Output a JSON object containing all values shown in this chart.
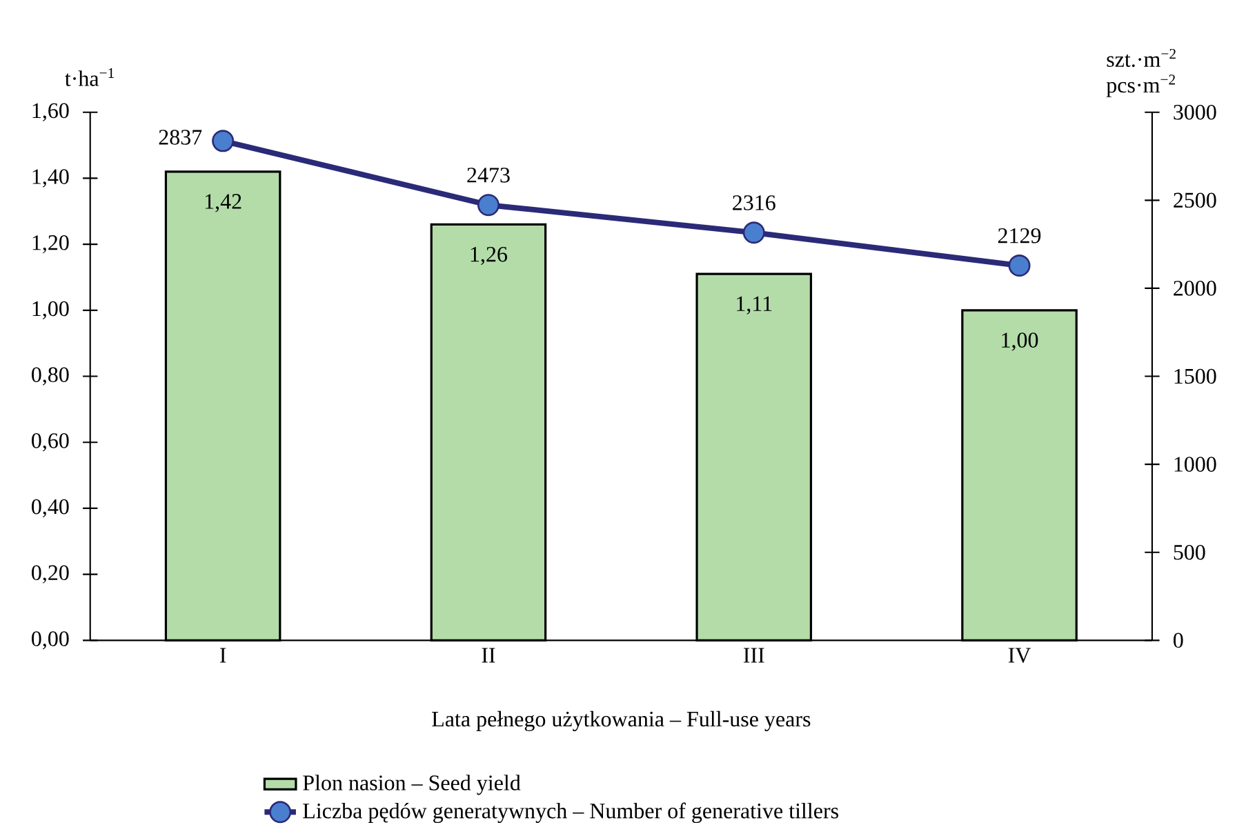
{
  "chart_data": {
    "type": "bar",
    "xlabel": "Lata pełnego użytkowania – Full-use years",
    "ylabel": "t·ha$^{−1}$",
    "y2label": "szt.·m$^{−2}$ pcs·m$^{−2}$",
    "categories": [
      "I",
      "II",
      "III",
      "IV"
    ],
    "series": [
      {
        "name": "Plon nasion – Seed yield",
        "color": "#b3dca9",
        "values": [
          1.42,
          1.26,
          1.11,
          1.0
        ],
        "value_labels": [
          "1,42",
          "1,26",
          "1,11",
          "1,00"
        ]
      },
      {
        "name": "Liczba pędów generatywnych – Number of generative tillers",
        "type": "line",
        "axis": "y2",
        "color": "#2b2a78",
        "values": [
          2837,
          2473,
          2316,
          2129
        ],
        "value_labels": [
          "2837",
          "2473",
          "2316",
          "2129"
        ]
      }
    ],
    "marker": "circle",
    "legend": "bottom",
    "grid": false,
    "ylim": [
      0,
      1.6
    ],
    "yticks": [
      {
        "value": 0,
        "label": "0,00"
      },
      {
        "value": 0.2,
        "label": "0,20"
      },
      {
        "value": 0.4,
        "label": "0,40"
      },
      {
        "value": 0.6,
        "label": "0,60"
      },
      {
        "value": 0.8,
        "label": "0,80"
      },
      {
        "value": 1.0,
        "label": "1,00"
      },
      {
        "value": 1.2,
        "label": "1,20"
      },
      {
        "value": 1.4,
        "label": "1,40"
      },
      {
        "value": 1.6,
        "label": "1,60"
      }
    ],
    "y2lim": [
      0,
      3000
    ],
    "y2ticks": [
      0,
      500,
      1000,
      1500,
      2000,
      2500,
      3000
    ]
  }
}
